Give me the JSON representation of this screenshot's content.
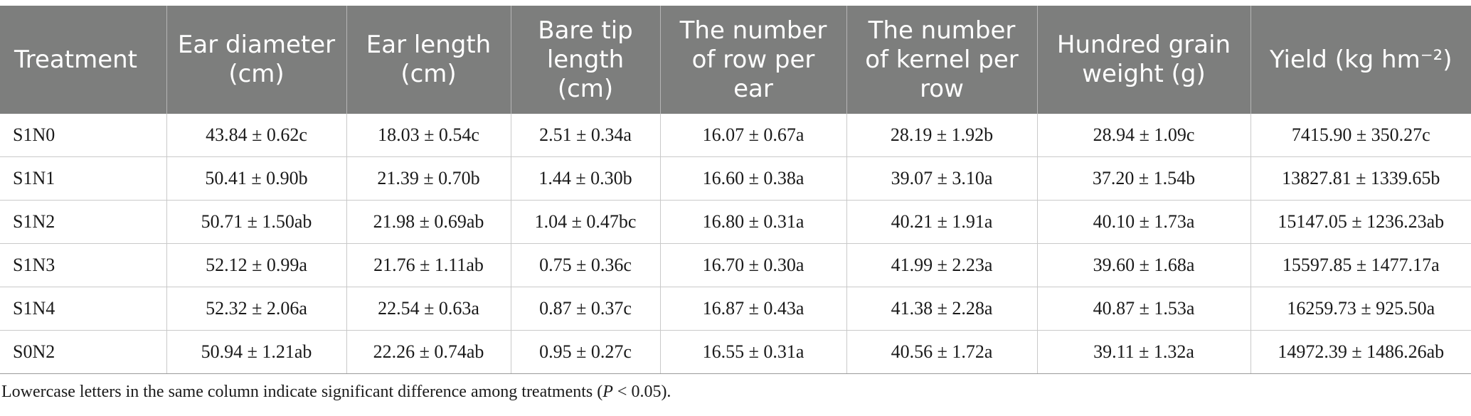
{
  "table": {
    "headers": [
      "Treatment",
      "Ear diameter (cm)",
      "Ear length (cm)",
      "Bare tip length (cm)",
      "The number of row per ear",
      "The number of kernel per row",
      "Hundred grain weight (g)",
      "Yield (kg hm⁻²)"
    ],
    "rows": [
      [
        "S1N0",
        "43.84 ± 0.62c",
        "18.03 ± 0.54c",
        "2.51 ± 0.34a",
        "16.07 ± 0.67a",
        "28.19 ± 1.92b",
        "28.94 ± 1.09c",
        "7415.90 ± 350.27c"
      ],
      [
        "S1N1",
        "50.41 ± 0.90b",
        "21.39 ± 0.70b",
        "1.44 ± 0.30b",
        "16.60 ± 0.38a",
        "39.07 ± 3.10a",
        "37.20 ± 1.54b",
        "13827.81 ± 1339.65b"
      ],
      [
        "S1N2",
        "50.71 ± 1.50ab",
        "21.98 ± 0.69ab",
        "1.04 ± 0.47bc",
        "16.80 ± 0.31a",
        "40.21 ± 1.91a",
        "40.10 ± 1.73a",
        "15147.05 ± 1236.23ab"
      ],
      [
        "S1N3",
        "52.12 ± 0.99a",
        "21.76 ± 1.11ab",
        "0.75 ± 0.36c",
        "16.70 ± 0.30a",
        "41.99 ± 2.23a",
        "39.60 ± 1.68a",
        "15597.85 ± 1477.17a"
      ],
      [
        "S1N4",
        "52.32 ± 2.06a",
        "22.54 ± 0.63a",
        "0.87 ± 0.37c",
        "16.87 ± 0.43a",
        "41.38 ± 2.28a",
        "40.87 ± 1.53a",
        "16259.73 ± 925.50a"
      ],
      [
        "S0N2",
        "50.94 ± 1.21ab",
        "22.26 ± 0.74ab",
        "0.95 ± 0.27c",
        "16.55 ± 0.31a",
        "40.56 ± 1.72a",
        "39.11 ± 1.32a",
        "14972.39 ± 1486.26ab"
      ]
    ]
  },
  "footnote": {
    "text_before": "Lowercase letters in the same column indicate significant difference among treatments (",
    "italic": "P",
    "text_after": " < 0.05)."
  }
}
